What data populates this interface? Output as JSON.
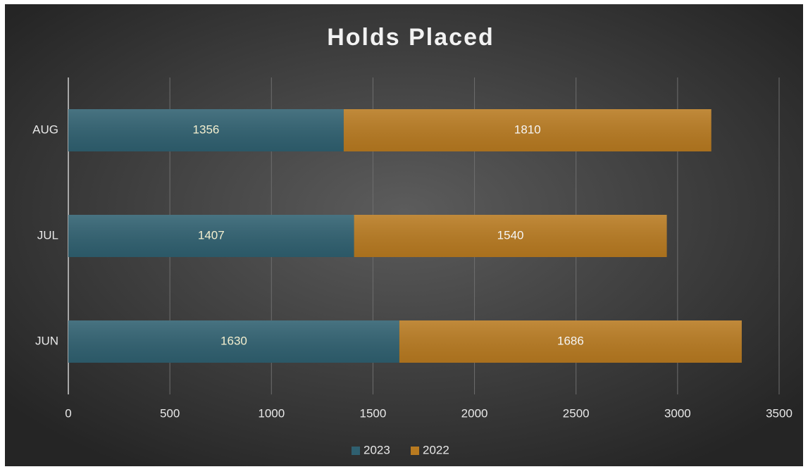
{
  "chart_data": {
    "type": "bar",
    "orientation": "horizontal",
    "stacked": true,
    "title": "Holds Placed",
    "categories": [
      "JUN",
      "JUL",
      "AUG"
    ],
    "series": [
      {
        "name": "2023",
        "color": "#2f6070",
        "values": [
          1630,
          1407,
          1356
        ]
      },
      {
        "name": "2022",
        "color": "#b87a20",
        "values": [
          1686,
          1540,
          1810
        ]
      }
    ],
    "xlim": [
      0,
      3500
    ],
    "xticks": [
      0,
      500,
      1000,
      1500,
      2000,
      2500,
      3000,
      3500
    ],
    "grid": true,
    "legend": "bottom"
  }
}
